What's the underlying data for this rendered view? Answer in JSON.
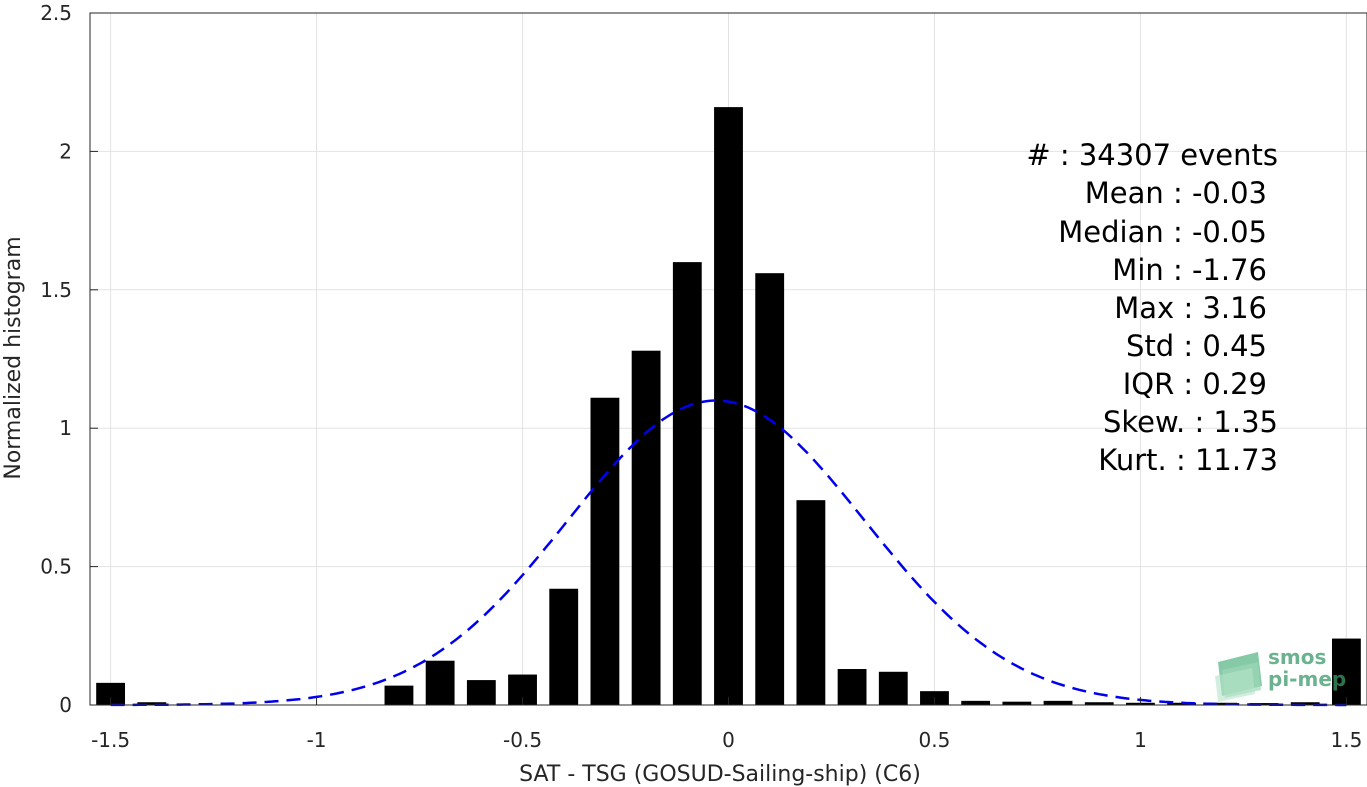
{
  "chart_data": {
    "type": "bar",
    "xlabel": "SAT - TSG (GOSUD-Sailing-ship) (C6)",
    "ylabel": "Normalized histogram",
    "xlim": [
      -1.55,
      1.55
    ],
    "ylim": [
      0,
      2.5
    ],
    "grid": true,
    "xticks": [
      -1.5,
      -1,
      -0.5,
      0,
      0.5,
      1,
      1.5
    ],
    "xtick_labels": [
      "-1.5",
      "-1",
      "-0.5",
      "0",
      "0.5",
      "1",
      "1.5"
    ],
    "yticks": [
      0,
      0.5,
      1,
      1.5,
      2,
      2.5
    ],
    "ytick_labels": [
      "0",
      "0.5",
      "1",
      "1.5",
      "2",
      "2.5"
    ],
    "bar_width": 0.07,
    "bar_color": "#000000",
    "x": [
      -1.5,
      -1.4,
      -1.3,
      -1.2,
      -1.1,
      -1.0,
      -0.9,
      -0.8,
      -0.7,
      -0.6,
      -0.5,
      -0.4,
      -0.3,
      -0.2,
      -0.1,
      0.0,
      0.1,
      0.2,
      0.3,
      0.4,
      0.5,
      0.6,
      0.7,
      0.8,
      0.9,
      1.0,
      1.1,
      1.2,
      1.3,
      1.4,
      1.5
    ],
    "values": [
      0.08,
      0.01,
      0.0,
      0.0,
      0.0,
      0.0,
      0.0,
      0.07,
      0.16,
      0.09,
      0.11,
      0.42,
      1.11,
      1.28,
      1.6,
      2.16,
      1.56,
      0.74,
      0.13,
      0.12,
      0.05,
      0.015,
      0.012,
      0.015,
      0.01,
      0.008,
      0.008,
      0.008,
      0.007,
      0.01,
      0.24
    ],
    "fit": {
      "type": "normal",
      "mean": -0.03,
      "std": 0.36,
      "peak": 1.1,
      "color": "#0000ee",
      "style": "dashed"
    },
    "stats": {
      "count": "#  : 34307 events",
      "mean": "Mean : -0.03",
      "median": "Median : -0.05",
      "min": "Min : -1.76",
      "max": "Max : 3.16",
      "std": "Std : 0.45",
      "iqr": "IQR : 0.29",
      "skew": "Skew. : 1.35",
      "kurt": "Kurt. : 11.73"
    }
  },
  "logo": {
    "line1": "smos",
    "line2": "pi-mep",
    "color": "#3a9a6a"
  }
}
